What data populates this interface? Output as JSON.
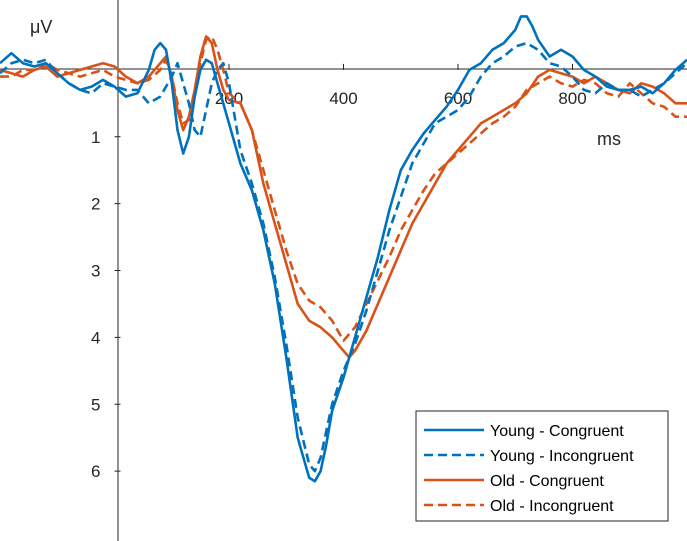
{
  "chart_data": {
    "type": "line",
    "title": "",
    "xlabel": "ms",
    "ylabel": "μV",
    "xlim": [
      -200,
      1000
    ],
    "ylim": [
      -1.0,
      7.0
    ],
    "y_reversed": true,
    "x_ticks": [
      200,
      400,
      600,
      800
    ],
    "y_ticks": [
      1,
      2,
      3,
      4,
      5,
      6
    ],
    "grid": false,
    "legend_position": "bottom-right",
    "series": [
      {
        "name": "Young - Congruent",
        "color": "#0072BD",
        "dash": "solid",
        "points": [
          [
            -200,
            -0.1
          ],
          [
            -180,
            -0.25
          ],
          [
            -160,
            -0.1
          ],
          [
            -140,
            -0.05
          ],
          [
            -120,
            -0.1
          ],
          [
            -100,
            0.05
          ],
          [
            -80,
            0.2
          ],
          [
            -60,
            0.3
          ],
          [
            -40,
            0.25
          ],
          [
            -20,
            0.15
          ],
          [
            0,
            0.25
          ],
          [
            20,
            0.4
          ],
          [
            40,
            0.35
          ],
          [
            60,
            0.0
          ],
          [
            70,
            -0.3
          ],
          [
            80,
            -0.4
          ],
          [
            90,
            -0.3
          ],
          [
            100,
            0.2
          ],
          [
            110,
            0.9
          ],
          [
            120,
            1.25
          ],
          [
            130,
            1.0
          ],
          [
            140,
            0.4
          ],
          [
            150,
            0.0
          ],
          [
            160,
            -0.15
          ],
          [
            170,
            -0.1
          ],
          [
            180,
            0.2
          ],
          [
            200,
            0.8
          ],
          [
            220,
            1.4
          ],
          [
            240,
            1.8
          ],
          [
            260,
            2.4
          ],
          [
            280,
            3.2
          ],
          [
            300,
            4.3
          ],
          [
            320,
            5.5
          ],
          [
            340,
            6.1
          ],
          [
            350,
            6.15
          ],
          [
            360,
            6.0
          ],
          [
            370,
            5.6
          ],
          [
            380,
            5.1
          ],
          [
            400,
            4.6
          ],
          [
            420,
            4.0
          ],
          [
            440,
            3.4
          ],
          [
            460,
            2.8
          ],
          [
            480,
            2.1
          ],
          [
            500,
            1.5
          ],
          [
            520,
            1.2
          ],
          [
            540,
            0.95
          ],
          [
            560,
            0.75
          ],
          [
            580,
            0.55
          ],
          [
            600,
            0.3
          ],
          [
            620,
            0.0
          ],
          [
            640,
            -0.1
          ],
          [
            660,
            -0.3
          ],
          [
            680,
            -0.4
          ],
          [
            700,
            -0.6
          ],
          [
            710,
            -0.8
          ],
          [
            720,
            -0.8
          ],
          [
            730,
            -0.65
          ],
          [
            740,
            -0.45
          ],
          [
            760,
            -0.2
          ],
          [
            780,
            -0.3
          ],
          [
            800,
            -0.2
          ],
          [
            820,
            0.0
          ],
          [
            840,
            0.1
          ],
          [
            860,
            0.25
          ],
          [
            880,
            0.3
          ],
          [
            900,
            0.3
          ],
          [
            920,
            0.25
          ],
          [
            940,
            0.35
          ],
          [
            960,
            0.2
          ],
          [
            980,
            0.0
          ],
          [
            1000,
            -0.15
          ]
        ]
      },
      {
        "name": "Young - Incongruent",
        "color": "#0072BD",
        "dash": "dashed",
        "points": [
          [
            -200,
            0.05
          ],
          [
            -180,
            -0.1
          ],
          [
            -160,
            -0.15
          ],
          [
            -140,
            -0.1
          ],
          [
            -120,
            -0.15
          ],
          [
            -100,
            0.05
          ],
          [
            -80,
            0.2
          ],
          [
            -60,
            0.3
          ],
          [
            -40,
            0.35
          ],
          [
            -20,
            0.2
          ],
          [
            0,
            0.25
          ],
          [
            20,
            0.3
          ],
          [
            40,
            0.3
          ],
          [
            60,
            0.5
          ],
          [
            80,
            0.4
          ],
          [
            100,
            0.1
          ],
          [
            110,
            -0.1
          ],
          [
            120,
            0.2
          ],
          [
            130,
            0.5
          ],
          [
            140,
            0.9
          ],
          [
            150,
            1.0
          ],
          [
            160,
            0.6
          ],
          [
            170,
            0.2
          ],
          [
            180,
            0.0
          ],
          [
            190,
            -0.1
          ],
          [
            200,
            0.2
          ],
          [
            220,
            1.2
          ],
          [
            240,
            1.7
          ],
          [
            260,
            2.3
          ],
          [
            280,
            3.1
          ],
          [
            300,
            4.1
          ],
          [
            320,
            5.2
          ],
          [
            340,
            5.9
          ],
          [
            350,
            6.0
          ],
          [
            360,
            5.8
          ],
          [
            370,
            5.4
          ],
          [
            380,
            5.0
          ],
          [
            400,
            4.5
          ],
          [
            420,
            4.1
          ],
          [
            440,
            3.6
          ],
          [
            460,
            3.0
          ],
          [
            480,
            2.4
          ],
          [
            500,
            1.9
          ],
          [
            520,
            1.4
          ],
          [
            540,
            1.1
          ],
          [
            560,
            0.8
          ],
          [
            570,
            0.75
          ],
          [
            580,
            0.7
          ],
          [
            600,
            0.6
          ],
          [
            620,
            0.4
          ],
          [
            640,
            0.1
          ],
          [
            660,
            -0.1
          ],
          [
            680,
            -0.2
          ],
          [
            700,
            -0.35
          ],
          [
            720,
            -0.4
          ],
          [
            740,
            -0.3
          ],
          [
            760,
            -0.1
          ],
          [
            780,
            -0.05
          ],
          [
            800,
            0.1
          ],
          [
            820,
            0.3
          ],
          [
            840,
            0.35
          ],
          [
            860,
            0.2
          ],
          [
            880,
            0.3
          ],
          [
            900,
            0.3
          ],
          [
            920,
            0.4
          ],
          [
            940,
            0.3
          ],
          [
            960,
            0.2
          ],
          [
            980,
            0.05
          ],
          [
            1000,
            -0.1
          ]
        ]
      },
      {
        "name": "Old - Congruent",
        "color": "#D95319",
        "dash": "solid",
        "points": [
          [
            -200,
            0.0
          ],
          [
            -180,
            0.05
          ],
          [
            -160,
            0.1
          ],
          [
            -140,
            0.0
          ],
          [
            -120,
            -0.05
          ],
          [
            -100,
            0.1
          ],
          [
            -80,
            0.05
          ],
          [
            -60,
            0.0
          ],
          [
            -40,
            -0.05
          ],
          [
            -20,
            -0.1
          ],
          [
            0,
            -0.05
          ],
          [
            20,
            0.1
          ],
          [
            40,
            0.2
          ],
          [
            60,
            0.1
          ],
          [
            80,
            -0.1
          ],
          [
            90,
            -0.2
          ],
          [
            100,
            0.1
          ],
          [
            110,
            0.6
          ],
          [
            120,
            0.9
          ],
          [
            130,
            0.7
          ],
          [
            140,
            0.3
          ],
          [
            150,
            -0.2
          ],
          [
            160,
            -0.5
          ],
          [
            170,
            -0.4
          ],
          [
            180,
            0.0
          ],
          [
            190,
            0.3
          ],
          [
            200,
            0.45
          ],
          [
            220,
            0.5
          ],
          [
            240,
            0.9
          ],
          [
            260,
            1.7
          ],
          [
            280,
            2.3
          ],
          [
            300,
            2.9
          ],
          [
            320,
            3.5
          ],
          [
            340,
            3.75
          ],
          [
            360,
            3.85
          ],
          [
            380,
            4.0
          ],
          [
            400,
            4.2
          ],
          [
            410,
            4.3
          ],
          [
            420,
            4.2
          ],
          [
            440,
            3.9
          ],
          [
            460,
            3.5
          ],
          [
            480,
            3.1
          ],
          [
            500,
            2.7
          ],
          [
            520,
            2.3
          ],
          [
            540,
            2.0
          ],
          [
            560,
            1.7
          ],
          [
            580,
            1.4
          ],
          [
            600,
            1.2
          ],
          [
            620,
            1.0
          ],
          [
            640,
            0.8
          ],
          [
            660,
            0.7
          ],
          [
            680,
            0.6
          ],
          [
            700,
            0.5
          ],
          [
            720,
            0.35
          ],
          [
            740,
            0.1
          ],
          [
            760,
            0.0
          ],
          [
            780,
            0.05
          ],
          [
            800,
            0.1
          ],
          [
            820,
            0.2
          ],
          [
            840,
            0.1
          ],
          [
            860,
            0.2
          ],
          [
            880,
            0.3
          ],
          [
            900,
            0.35
          ],
          [
            920,
            0.2
          ],
          [
            940,
            0.25
          ],
          [
            960,
            0.35
          ],
          [
            980,
            0.5
          ],
          [
            1000,
            0.5
          ]
        ]
      },
      {
        "name": "Old - Incongruent",
        "color": "#D95319",
        "dash": "dashed",
        "points": [
          [
            -200,
            0.1
          ],
          [
            -180,
            0.1
          ],
          [
            -160,
            0.0
          ],
          [
            -140,
            0.0
          ],
          [
            -120,
            -0.1
          ],
          [
            -100,
            0.0
          ],
          [
            -80,
            0.05
          ],
          [
            -60,
            0.1
          ],
          [
            -40,
            0.05
          ],
          [
            -20,
            0.0
          ],
          [
            0,
            0.1
          ],
          [
            20,
            0.15
          ],
          [
            40,
            0.2
          ],
          [
            60,
            0.15
          ],
          [
            80,
            0.0
          ],
          [
            90,
            -0.15
          ],
          [
            100,
            0.1
          ],
          [
            110,
            0.5
          ],
          [
            120,
            0.8
          ],
          [
            130,
            0.75
          ],
          [
            140,
            0.4
          ],
          [
            150,
            -0.1
          ],
          [
            160,
            -0.45
          ],
          [
            170,
            -0.5
          ],
          [
            180,
            -0.3
          ],
          [
            190,
            0.0
          ],
          [
            200,
            0.35
          ],
          [
            220,
            0.5
          ],
          [
            240,
            0.9
          ],
          [
            260,
            1.5
          ],
          [
            280,
            2.1
          ],
          [
            300,
            2.7
          ],
          [
            320,
            3.2
          ],
          [
            340,
            3.45
          ],
          [
            360,
            3.55
          ],
          [
            380,
            3.75
          ],
          [
            390,
            3.9
          ],
          [
            400,
            4.05
          ],
          [
            420,
            3.85
          ],
          [
            440,
            3.5
          ],
          [
            460,
            3.15
          ],
          [
            480,
            2.8
          ],
          [
            500,
            2.4
          ],
          [
            520,
            2.1
          ],
          [
            540,
            1.8
          ],
          [
            560,
            1.55
          ],
          [
            580,
            1.4
          ],
          [
            600,
            1.25
          ],
          [
            620,
            1.1
          ],
          [
            640,
            0.95
          ],
          [
            660,
            0.8
          ],
          [
            680,
            0.7
          ],
          [
            700,
            0.55
          ],
          [
            720,
            0.3
          ],
          [
            740,
            0.2
          ],
          [
            760,
            0.1
          ],
          [
            780,
            0.2
          ],
          [
            800,
            0.25
          ],
          [
            820,
            0.15
          ],
          [
            840,
            0.2
          ],
          [
            860,
            0.35
          ],
          [
            880,
            0.4
          ],
          [
            900,
            0.2
          ],
          [
            920,
            0.35
          ],
          [
            940,
            0.5
          ],
          [
            960,
            0.55
          ],
          [
            980,
            0.7
          ],
          [
            1000,
            0.7
          ]
        ]
      }
    ]
  }
}
